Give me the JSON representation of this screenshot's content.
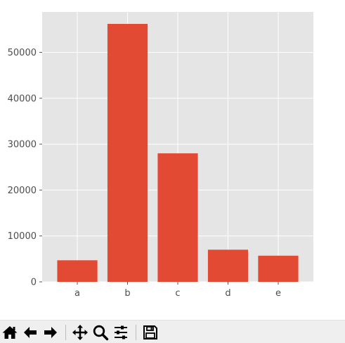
{
  "chart_data": {
    "type": "bar",
    "categories": [
      "a",
      "b",
      "c",
      "d",
      "e"
    ],
    "values": [
      4700,
      56200,
      28000,
      7000,
      5700
    ],
    "ylim": [
      0,
      58800
    ],
    "yticks": [
      0,
      10000,
      20000,
      30000,
      40000,
      50000
    ],
    "grid": true,
    "style": "ggplot",
    "bar_color": "#E24A33",
    "background_color": "#E5E5E5",
    "grid_color": "#FFFFFF"
  },
  "toolbar": {
    "buttons": [
      {
        "name": "home-button",
        "icon": "home-icon"
      },
      {
        "name": "back-button",
        "icon": "arrow-left-icon"
      },
      {
        "name": "forward-button",
        "icon": "arrow-right-icon"
      },
      {
        "name": "pan-button",
        "icon": "move-icon"
      },
      {
        "name": "zoom-button",
        "icon": "magnifier-icon"
      },
      {
        "name": "configure-subplots-button",
        "icon": "sliders-icon"
      },
      {
        "name": "save-button",
        "icon": "floppy-disk-icon"
      }
    ]
  }
}
